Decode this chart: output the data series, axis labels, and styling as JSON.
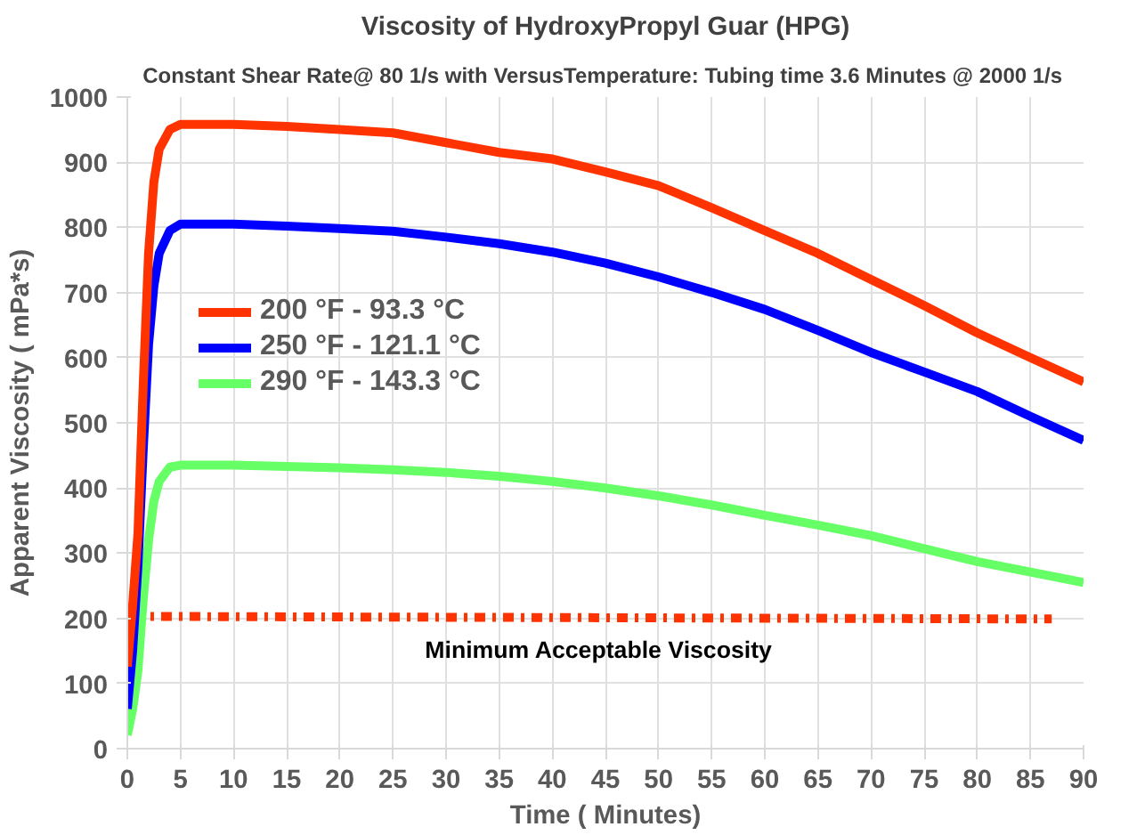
{
  "chart_data": {
    "type": "line",
    "title": "Viscosity of HydroxyPropyl Guar (HPG)",
    "subtitle": "Constant Shear Rate@ 80 1/s  with VersusTemperature: Tubing time 3.6 Minutes @ 2000 1/s",
    "xlabel": "Time ( Minutes)",
    "ylabel": "Apparent Viscosity ( mPa*s)",
    "x": [
      0,
      0.5,
      1,
      1.5,
      2,
      2.5,
      3,
      4,
      5,
      10,
      15,
      20,
      25,
      30,
      35,
      40,
      45,
      50,
      55,
      60,
      65,
      70,
      75,
      80,
      85,
      90
    ],
    "series": [
      {
        "name": "200 °F - 93.3 °C",
        "color": "#ff3300",
        "values": [
          126,
          220,
          330,
          560,
          760,
          870,
          920,
          950,
          958,
          958,
          955,
          950,
          945,
          930,
          915,
          905,
          885,
          864,
          830,
          795,
          760,
          720,
          680,
          638,
          600,
          563
        ]
      },
      {
        "name": "250 °F - 121.1 °C",
        "color": "#0000ff",
        "values": [
          61,
          150,
          280,
          460,
          620,
          710,
          760,
          795,
          805,
          805,
          802,
          798,
          794,
          785,
          775,
          762,
          745,
          724,
          700,
          674,
          642,
          608,
          578,
          548,
          510,
          473
        ]
      },
      {
        "name": "290 °F - 143.3 °C",
        "color": "#66ff66",
        "values": [
          21,
          60,
          120,
          230,
          320,
          380,
          410,
          432,
          435,
          435,
          433,
          431,
          428,
          424,
          418,
          410,
          400,
          388,
          374,
          358,
          343,
          327,
          307,
          287,
          271,
          255
        ]
      },
      {
        "color": "#ff3300",
        "x": [
          0.5,
          87
        ],
        "values": [
          203,
          199
        ],
        "line_style": "dashed"
      }
    ],
    "annotations": [
      "Minimum  Acceptable  Viscosity"
    ],
    "xlim": [
      0,
      90
    ],
    "ylim": [
      0,
      1000
    ],
    "xticks": [
      0,
      5,
      10,
      15,
      20,
      25,
      30,
      35,
      40,
      45,
      50,
      55,
      60,
      65,
      70,
      75,
      80,
      85,
      90
    ],
    "yticks": [
      0,
      100,
      200,
      300,
      400,
      500,
      600,
      700,
      800,
      900,
      1000
    ],
    "grid": true,
    "legend": "left",
    "line_style": "solid"
  }
}
